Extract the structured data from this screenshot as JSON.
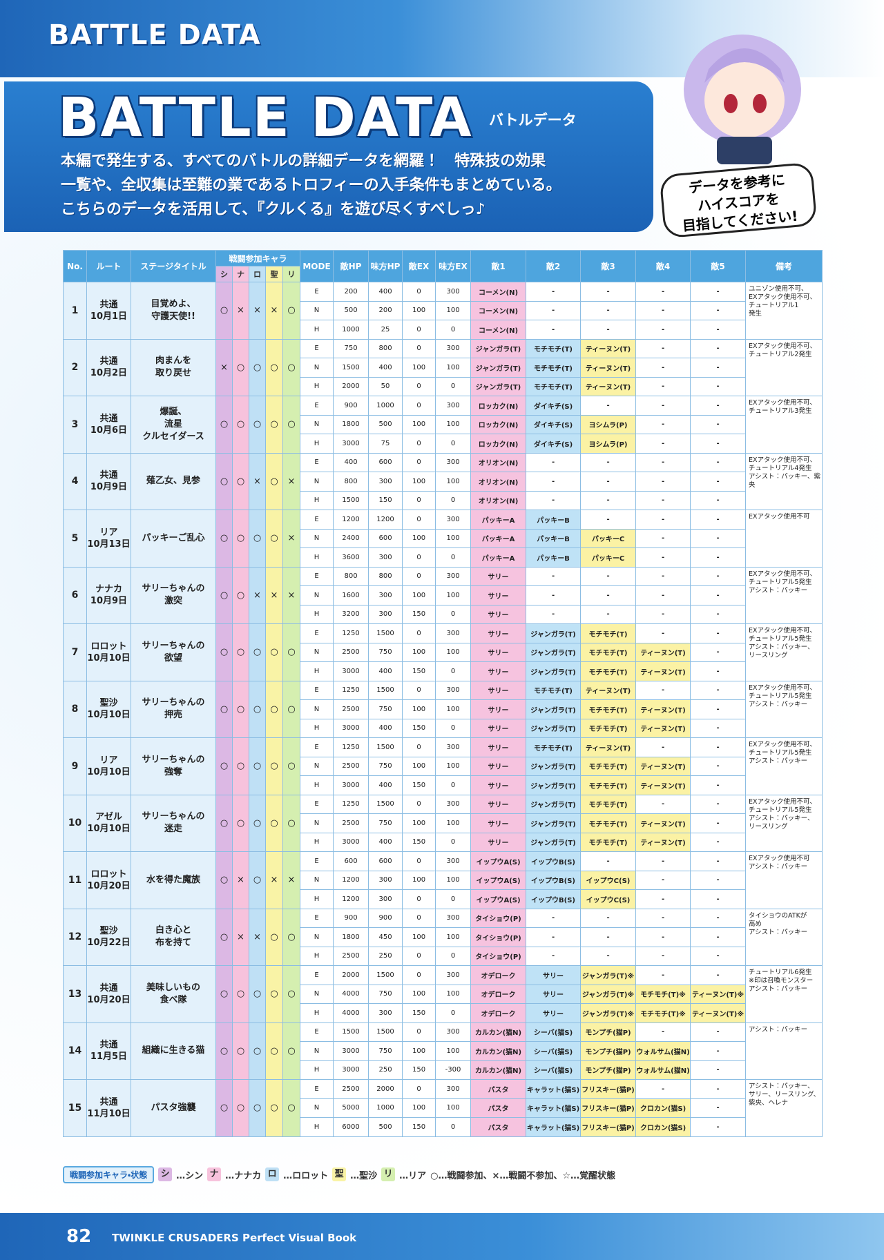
{
  "header": {
    "section_title": "BATTLE DATA"
  },
  "intro": {
    "title": "BATTLE DATA",
    "subtitle": "バトルデータ",
    "lines": [
      "本編で発生する、すべてのバトルの詳細データを網羅！　特殊技の効果",
      "一覧や、全収集は至難の業であるトロフィーの入手条件もまとめている。",
      "こちらのデータを活用して、『クルくる』を遊び尽くすべしっ♪"
    ],
    "speech": [
      "データを参考に",
      "ハイスコアを",
      "目指してください!"
    ]
  },
  "table": {
    "columns": [
      "No.",
      "ルート",
      "ステージタイトル",
      "戦闘参加キャラ",
      "MODE",
      "敵HP",
      "味方HP",
      "敵EX",
      "味方EX",
      "敵1",
      "敵2",
      "敵3",
      "敵4",
      "敵5",
      "備考"
    ],
    "chars": [
      "シ",
      "ナ",
      "ロ",
      "聖",
      "リ"
    ],
    "stages": [
      {
        "no": 1,
        "route": "共通",
        "date": "10月1日",
        "title": [
          "目覚めよ、",
          "守護天使!!"
        ],
        "chars": [
          "○",
          "×",
          "×",
          "×",
          "○"
        ],
        "modes": [
          [
            "E",
            200,
            400,
            0,
            300,
            "コーメン(N)",
            "-",
            "-",
            "-",
            "-"
          ],
          [
            "N",
            500,
            200,
            100,
            100,
            "コーメン(N)",
            "-",
            "-",
            "-",
            "-"
          ],
          [
            "H",
            1000,
            25,
            0,
            0,
            "コーメン(N)",
            "-",
            "-",
            "-",
            "-"
          ]
        ],
        "note": [
          "ユニゾン使用不可、",
          "EXアタック使用不可、",
          "チュートリアル1",
          "発生"
        ]
      },
      {
        "no": 2,
        "route": "共通",
        "date": "10月2日",
        "title": [
          "肉まんを",
          "取り戻せ"
        ],
        "chars": [
          "×",
          "○",
          "○",
          "○",
          "○"
        ],
        "modes": [
          [
            "E",
            750,
            800,
            0,
            300,
            "ジャンガラ(T)",
            "モチモチ(T)",
            "ティーヌン(T)",
            "-",
            "-"
          ],
          [
            "N",
            1500,
            400,
            100,
            100,
            "ジャンガラ(T)",
            "モチモチ(T)",
            "ティーヌン(T)",
            "-",
            "-"
          ],
          [
            "H",
            2000,
            50,
            0,
            0,
            "ジャンガラ(T)",
            "モチモチ(T)",
            "ティーヌン(T)",
            "-",
            "-"
          ]
        ],
        "note": [
          "EXアタック使用不可、",
          "チュートリアル2発生"
        ]
      },
      {
        "no": 3,
        "route": "共通",
        "date": "10月6日",
        "title": [
          "爆誕、",
          "流星",
          "クルセイダース"
        ],
        "chars": [
          "○",
          "○",
          "○",
          "○",
          "○"
        ],
        "modes": [
          [
            "E",
            900,
            1000,
            0,
            300,
            "ロッカク(N)",
            "ダイキチ(S)",
            "-",
            "-",
            "-"
          ],
          [
            "N",
            1800,
            500,
            100,
            100,
            "ロッカク(N)",
            "ダイキチ(S)",
            "ヨシムラ(P)",
            "-",
            "-"
          ],
          [
            "H",
            3000,
            75,
            0,
            0,
            "ロッカク(N)",
            "ダイキチ(S)",
            "ヨシムラ(P)",
            "-",
            "-"
          ]
        ],
        "note": [
          "EXアタック使用不可、",
          "チュートリアル3発生"
        ]
      },
      {
        "no": 4,
        "route": "共通",
        "date": "10月9日",
        "title": [
          "薙乙女、見参"
        ],
        "chars": [
          "○",
          "○",
          "×",
          "○",
          "×"
        ],
        "modes": [
          [
            "E",
            400,
            600,
            0,
            300,
            "オリオン(N)",
            "-",
            "-",
            "-",
            "-"
          ],
          [
            "N",
            800,
            300,
            100,
            100,
            "オリオン(N)",
            "-",
            "-",
            "-",
            "-"
          ],
          [
            "H",
            1500,
            150,
            0,
            0,
            "オリオン(N)",
            "-",
            "-",
            "-",
            "-"
          ]
        ],
        "note": [
          "EXアタック使用不可、",
          "チュートリアル4発生",
          "アシスト：パッキー、紫",
          "央"
        ]
      },
      {
        "no": 5,
        "route": "リア",
        "date": "10月13日",
        "title": [
          "パッキーご乱心"
        ],
        "chars": [
          "○",
          "○",
          "○",
          "○",
          "×"
        ],
        "modes": [
          [
            "E",
            1200,
            1200,
            0,
            300,
            "パッキーA",
            "パッキーB",
            "-",
            "-",
            "-"
          ],
          [
            "N",
            2400,
            600,
            100,
            100,
            "パッキーA",
            "パッキーB",
            "パッキーC",
            "-",
            "-"
          ],
          [
            "H",
            3600,
            300,
            0,
            0,
            "パッキーA",
            "パッキーB",
            "パッキーC",
            "-",
            "-"
          ]
        ],
        "note": [
          "EXアタック使用不可"
        ]
      },
      {
        "no": 6,
        "route": "ナナカ",
        "date": "10月9日",
        "title": [
          "サリーちゃんの",
          "激突"
        ],
        "chars": [
          "○",
          "○",
          "×",
          "×",
          "×"
        ],
        "modes": [
          [
            "E",
            800,
            800,
            0,
            300,
            "サリー",
            "-",
            "-",
            "-",
            "-"
          ],
          [
            "N",
            1600,
            300,
            100,
            100,
            "サリー",
            "-",
            "-",
            "-",
            "-"
          ],
          [
            "H",
            3200,
            300,
            150,
            0,
            "サリー",
            "-",
            "-",
            "-",
            "-"
          ]
        ],
        "note": [
          "EXアタック使用不可、",
          "チュートリアル5発生",
          "アシスト：パッキー"
        ]
      },
      {
        "no": 7,
        "route": "ロロット",
        "date": "10月10日",
        "title": [
          "サリーちゃんの",
          "欲望"
        ],
        "chars": [
          "○",
          "○",
          "○",
          "○",
          "○"
        ],
        "modes": [
          [
            "E",
            1250,
            1500,
            0,
            300,
            "サリー",
            "ジャンガラ(T)",
            "モチモチ(T)",
            "-",
            "-"
          ],
          [
            "N",
            2500,
            750,
            100,
            100,
            "サリー",
            "ジャンガラ(T)",
            "モチモチ(T)",
            "ティーヌン(T)",
            "-"
          ],
          [
            "H",
            3000,
            400,
            150,
            0,
            "サリー",
            "ジャンガラ(T)",
            "モチモチ(T)",
            "ティーヌン(T)",
            "-"
          ]
        ],
        "note": [
          "EXアタック使用不可、",
          "チュートリアル5発生",
          "アシスト：パッキー、",
          "リースリング"
        ]
      },
      {
        "no": 8,
        "route": "聖沙",
        "date": "10月10日",
        "title": [
          "サリーちゃんの",
          "押売"
        ],
        "chars": [
          "○",
          "○",
          "○",
          "○",
          "○"
        ],
        "modes": [
          [
            "E",
            1250,
            1500,
            0,
            300,
            "サリー",
            "モチモチ(T)",
            "ティーヌン(T)",
            "-",
            "-"
          ],
          [
            "N",
            2500,
            750,
            100,
            100,
            "サリー",
            "ジャンガラ(T)",
            "モチモチ(T)",
            "ティーヌン(T)",
            "-"
          ],
          [
            "H",
            3000,
            400,
            150,
            0,
            "サリー",
            "ジャンガラ(T)",
            "モチモチ(T)",
            "ティーヌン(T)",
            "-"
          ]
        ],
        "note": [
          "EXアタック使用不可、",
          "チュートリアル5発生",
          "アシスト：パッキー"
        ]
      },
      {
        "no": 9,
        "route": "リア",
        "date": "10月10日",
        "title": [
          "サリーちゃんの",
          "強奪"
        ],
        "chars": [
          "○",
          "○",
          "○",
          "○",
          "○"
        ],
        "modes": [
          [
            "E",
            1250,
            1500,
            0,
            300,
            "サリー",
            "モチモチ(T)",
            "ティーヌン(T)",
            "-",
            "-"
          ],
          [
            "N",
            2500,
            750,
            100,
            100,
            "サリー",
            "ジャンガラ(T)",
            "モチモチ(T)",
            "ティーヌン(T)",
            "-"
          ],
          [
            "H",
            3000,
            400,
            150,
            0,
            "サリー",
            "ジャンガラ(T)",
            "モチモチ(T)",
            "ティーヌン(T)",
            "-"
          ]
        ],
        "note": [
          "EXアタック使用不可、",
          "チュートリアル5発生",
          "アシスト：パッキー"
        ]
      },
      {
        "no": 10,
        "route": "アゼル",
        "date": "10月10日",
        "title": [
          "サリーちゃんの",
          "迷走"
        ],
        "chars": [
          "○",
          "○",
          "○",
          "○",
          "○"
        ],
        "modes": [
          [
            "E",
            1250,
            1500,
            0,
            300,
            "サリー",
            "ジャンガラ(T)",
            "モチモチ(T)",
            "-",
            "-"
          ],
          [
            "N",
            2500,
            750,
            100,
            100,
            "サリー",
            "ジャンガラ(T)",
            "モチモチ(T)",
            "ティーヌン(T)",
            "-"
          ],
          [
            "H",
            3000,
            400,
            150,
            0,
            "サリー",
            "ジャンガラ(T)",
            "モチモチ(T)",
            "ティーヌン(T)",
            "-"
          ]
        ],
        "note": [
          "EXアタック使用不可、",
          "チュートリアル5発生",
          "アシスト：パッキー、",
          "リースリング"
        ]
      },
      {
        "no": 11,
        "route": "ロロット",
        "date": "10月20日",
        "title": [
          "水を得た魔族"
        ],
        "chars": [
          "○",
          "×",
          "○",
          "×",
          "×"
        ],
        "modes": [
          [
            "E",
            600,
            600,
            0,
            300,
            "イップウA(S)",
            "イップウB(S)",
            "-",
            "-",
            "-"
          ],
          [
            "N",
            1200,
            300,
            100,
            100,
            "イップウA(S)",
            "イップウB(S)",
            "イップウC(S)",
            "-",
            "-"
          ],
          [
            "H",
            1200,
            300,
            0,
            0,
            "イップウA(S)",
            "イップウB(S)",
            "イップウC(S)",
            "-",
            "-"
          ]
        ],
        "note": [
          "EXアタック使用不可",
          "アシスト：パッキー"
        ]
      },
      {
        "no": 12,
        "route": "聖沙",
        "date": "10月22日",
        "title": [
          "白き心と",
          "布を持て"
        ],
        "chars": [
          "○",
          "×",
          "×",
          "○",
          "○"
        ],
        "modes": [
          [
            "E",
            900,
            900,
            0,
            300,
            "タイショウ(P)",
            "-",
            "-",
            "-",
            "-"
          ],
          [
            "N",
            1800,
            450,
            100,
            100,
            "タイショウ(P)",
            "-",
            "-",
            "-",
            "-"
          ],
          [
            "H",
            2500,
            250,
            0,
            0,
            "タイショウ(P)",
            "-",
            "-",
            "-",
            "-"
          ]
        ],
        "note": [
          "タイショウのATKが",
          "高め",
          "アシスト：パッキー"
        ]
      },
      {
        "no": 13,
        "route": "共通",
        "date": "10月20日",
        "title": [
          "美味しいもの",
          "食べ隊"
        ],
        "chars": [
          "○",
          "○",
          "○",
          "○",
          "○"
        ],
        "modes": [
          [
            "E",
            2000,
            1500,
            0,
            300,
            "オデローク",
            "サリー",
            "ジャンガラ(T)※",
            "-",
            "-"
          ],
          [
            "N",
            4000,
            750,
            100,
            100,
            "オデローク",
            "サリー",
            "ジャンガラ(T)※",
            "モチモチ(T)※",
            "ティーヌン(T)※"
          ],
          [
            "H",
            4000,
            300,
            150,
            0,
            "オデローク",
            "サリー",
            "ジャンガラ(T)※",
            "モチモチ(T)※",
            "ティーヌン(T)※"
          ]
        ],
        "note": [
          "チュートリアル6発生",
          "※印は召喚モンスター",
          "アシスト：パッキー"
        ]
      },
      {
        "no": 14,
        "route": "共通",
        "date": "11月5日",
        "title": [
          "組織に生きる猫"
        ],
        "chars": [
          "○",
          "○",
          "○",
          "○",
          "○"
        ],
        "modes": [
          [
            "E",
            1500,
            1500,
            0,
            300,
            "カルカン(猫N)",
            "シーバ(猫S)",
            "モンプチ(猫P)",
            "-",
            "-"
          ],
          [
            "N",
            3000,
            750,
            100,
            100,
            "カルカン(猫N)",
            "シーバ(猫S)",
            "モンプチ(猫P)",
            "ウォルサム(猫N)",
            "-"
          ],
          [
            "H",
            3000,
            250,
            150,
            -300,
            "カルカン(猫N)",
            "シーバ(猫S)",
            "モンプチ(猫P)",
            "ウォルサム(猫N)",
            "-"
          ]
        ],
        "note": [
          "アシスト：パッキー"
        ]
      },
      {
        "no": 15,
        "route": "共通",
        "date": "11月10日",
        "title": [
          "パスタ強襲"
        ],
        "chars": [
          "○",
          "○",
          "○",
          "○",
          "○"
        ],
        "modes": [
          [
            "E",
            2500,
            2000,
            0,
            300,
            "パスタ",
            "キャラット(猫S)",
            "フリスキー(猫P)",
            "-",
            "-"
          ],
          [
            "N",
            5000,
            1000,
            100,
            100,
            "パスタ",
            "キャラット(猫S)",
            "フリスキー(猫P)",
            "クロカン(猫S)",
            "-"
          ],
          [
            "H",
            6000,
            500,
            150,
            0,
            "パスタ",
            "キャラット(猫S)",
            "フリスキー(猫P)",
            "クロカン(猫S)",
            "-"
          ]
        ],
        "note": [
          "アシスト：パッキー、",
          "サリー、リースリング、",
          "紫央、ヘレナ"
        ]
      }
    ]
  },
  "legend": {
    "label": "戦闘参加キャラ・状態",
    "items": [
      {
        "key": "シ",
        "text": "…シン"
      },
      {
        "key": "ナ",
        "text": "…ナナカ"
      },
      {
        "key": "ロ",
        "text": "…ロロット"
      },
      {
        "key": "聖",
        "text": "…聖沙"
      },
      {
        "key": "リ",
        "text": "…リア"
      }
    ],
    "symbols": "○…戦闘参加、×…戦闘不参加、☆…覚醒状態"
  },
  "footer": {
    "page": "82",
    "book": "TWINKLE CRUSADERS Perfect Visual Book"
  }
}
